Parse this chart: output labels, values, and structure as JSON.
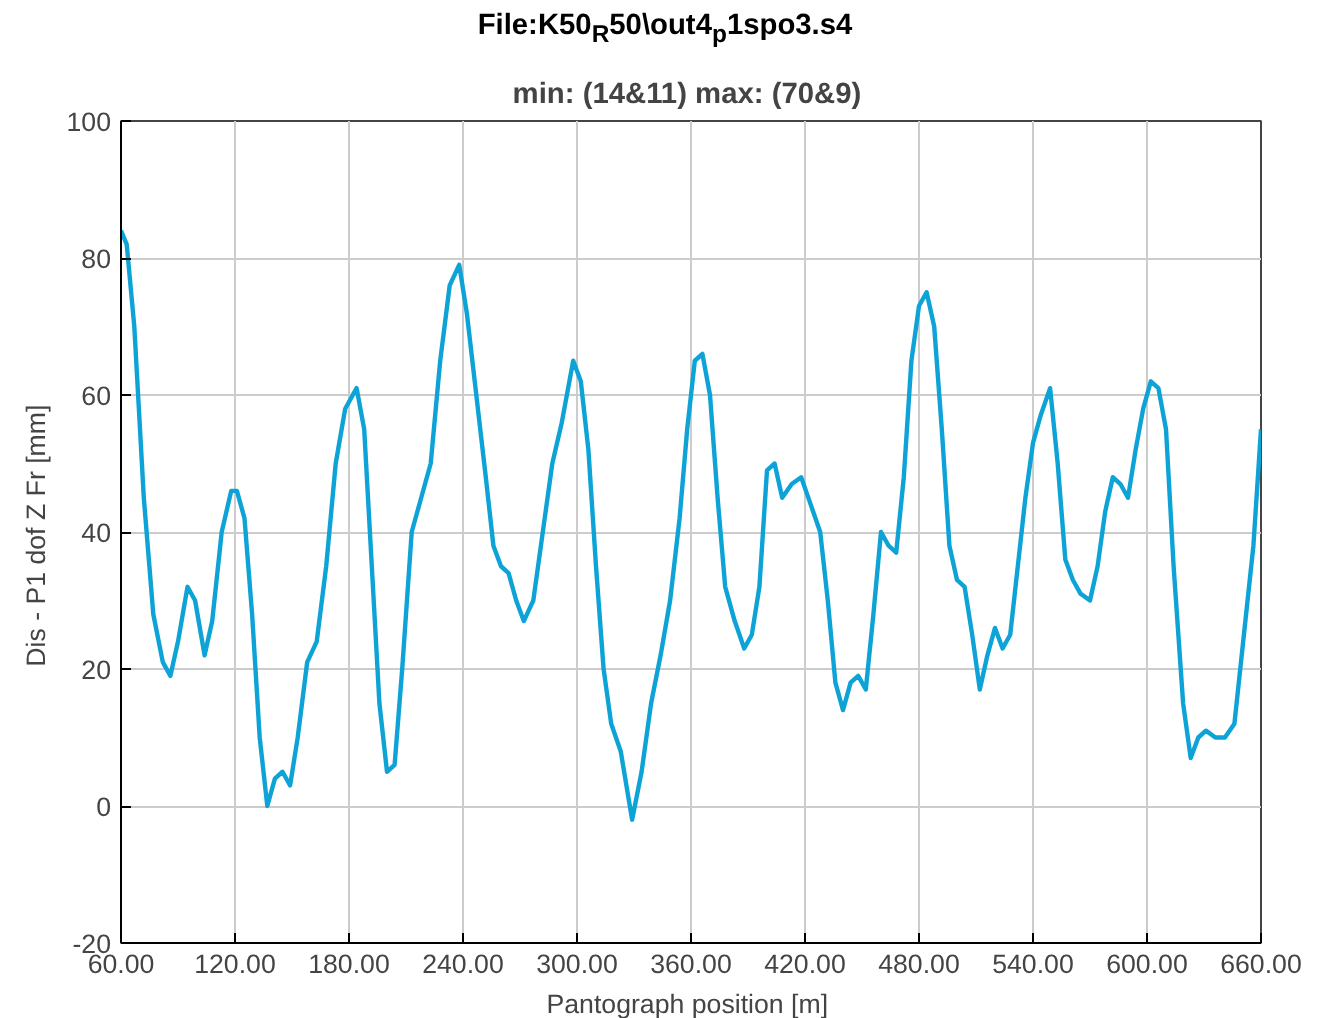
{
  "chart_data": {
    "type": "line",
    "title": "File:K50$_{R}$50\\out4$_{p}$1spo3.s4",
    "subtitle": "min: (14&11)  max: (70&9)",
    "xlabel": "Pantograph position  [m]",
    "ylabel": "Dis - P1 dof Z Fr  [mm]",
    "xlim": [
      60,
      660
    ],
    "ylim": [
      -20,
      100
    ],
    "xticks": [
      {
        "value": 60,
        "label": "60.00"
      },
      {
        "value": 120,
        "label": "120.00"
      },
      {
        "value": 180,
        "label": "180.00"
      },
      {
        "value": 240,
        "label": "240.00"
      },
      {
        "value": 300,
        "label": "300.00"
      },
      {
        "value": 360,
        "label": "360.00"
      },
      {
        "value": 420,
        "label": "420.00"
      },
      {
        "value": 480,
        "label": "480.00"
      },
      {
        "value": 540,
        "label": "540.00"
      },
      {
        "value": 600,
        "label": "600.00"
      },
      {
        "value": 660,
        "label": "660.00"
      }
    ],
    "yticks": [
      -20,
      0,
      20,
      40,
      60,
      80,
      100
    ],
    "grid": true,
    "marker": "none",
    "line_style": "solid",
    "series": [
      {
        "color": "#0ea3d6",
        "x": [
          60,
          63,
          67,
          72,
          77,
          82,
          86,
          90,
          95,
          99,
          104,
          108,
          113,
          118,
          121,
          125,
          129,
          133,
          137,
          141,
          145,
          149,
          153,
          158,
          163,
          168,
          173,
          178,
          184,
          188,
          192,
          196,
          200,
          204,
          208,
          213,
          218,
          223,
          228,
          233,
          238,
          242,
          247,
          252,
          256,
          260,
          264,
          268,
          272,
          277,
          282,
          287,
          292,
          298,
          302,
          306,
          310,
          314,
          318,
          323,
          329,
          334,
          339,
          344,
          349,
          354,
          358,
          362,
          366,
          370,
          374,
          378,
          383,
          388,
          392,
          396,
          400,
          404,
          408,
          413,
          418,
          423,
          428,
          432,
          436,
          440,
          444,
          448,
          452,
          456,
          460,
          464,
          468,
          472,
          476,
          480,
          484,
          488,
          492,
          496,
          500,
          504,
          508,
          512,
          516,
          520,
          524,
          528,
          532,
          536,
          540,
          544,
          549,
          553,
          557,
          561,
          565,
          570,
          574,
          578,
          582,
          586,
          590,
          594,
          598,
          602,
          606,
          610,
          614,
          619,
          623,
          627,
          631,
          636,
          641,
          646,
          651,
          656,
          660
        ],
        "values": [
          84,
          82,
          70,
          45,
          28,
          21,
          19,
          24,
          32,
          30,
          22,
          27,
          40,
          46,
          46,
          42,
          28,
          10,
          0,
          4,
          5,
          3,
          10,
          21,
          24,
          35,
          50,
          58,
          61,
          55,
          35,
          15,
          5,
          6,
          20,
          40,
          45,
          50,
          65,
          76,
          79,
          72,
          60,
          48,
          38,
          35,
          34,
          30,
          27,
          30,
          40,
          50,
          56,
          65,
          62,
          52,
          35,
          20,
          12,
          8,
          -2,
          5,
          15,
          22,
          30,
          42,
          55,
          65,
          66,
          60,
          45,
          32,
          27,
          23,
          25,
          32,
          49,
          50,
          45,
          47,
          48,
          44,
          40,
          30,
          18,
          14,
          18,
          19,
          17,
          28,
          40,
          38,
          37,
          48,
          65,
          73,
          75,
          70,
          55,
          38,
          33,
          32,
          25,
          17,
          22,
          26,
          23,
          25,
          35,
          45,
          53,
          57,
          61,
          50,
          36,
          33,
          31,
          30,
          35,
          43,
          48,
          47,
          45,
          52,
          58,
          62,
          61,
          55,
          35,
          15,
          7,
          10,
          11,
          10,
          10,
          12,
          25,
          38,
          55
        ]
      }
    ]
  }
}
